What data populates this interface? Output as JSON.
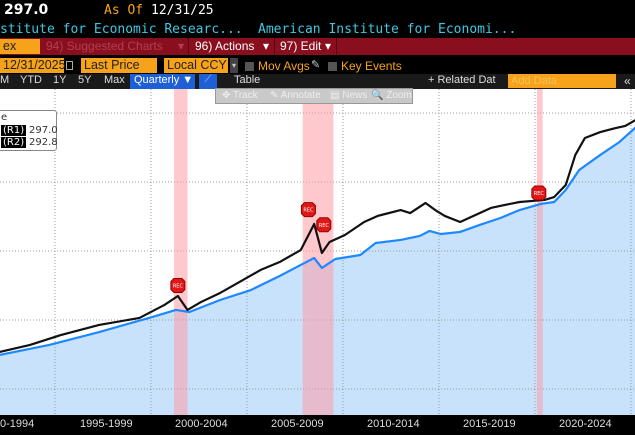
{
  "header": {
    "price": "297.0",
    "as_of_label": "As Of",
    "as_of_date": "12/31/25"
  },
  "subtitle": {
    "left": "stitute for Economic Researc...",
    "right": "American Institute for Economi..."
  },
  "menu": {
    "index_field": "ex",
    "suggested": "94) Suggested Charts",
    "actions": "96) Actions",
    "edit": "97) Edit",
    "caret": "▾"
  },
  "controls": {
    "date": "12/31/2025",
    "price_type": "Last Price",
    "currency": "Local CCY",
    "mov_avgs": "Mov Avgs",
    "key_events": "Key Events"
  },
  "ranges": {
    "items": [
      "M",
      "YTD",
      "1Y",
      "5Y",
      "Max"
    ],
    "period": "Quarterly ▼",
    "table": "Table",
    "related": "+ Related Dat",
    "add_data_placeholder": "Add Data",
    "collapse": "«"
  },
  "tools": {
    "track": "✥ Track",
    "annotate": "✎ Annotate",
    "news": "▤ News",
    "zoom": "🔍 Zoom"
  },
  "legend": {
    "title": "e",
    "r1_tag": "(R1)",
    "r1_value": "297.0",
    "r2_tag": "(R2)",
    "r2_value": "292.8"
  },
  "colors": {
    "black_line": "#111111",
    "blue_line": "#1e88ff",
    "fill": "#c8e2fc",
    "recession": "#ff9aa2",
    "orange": "#f7a21b",
    "menu_red": "#8a0f1e"
  },
  "chart_data": {
    "type": "line",
    "title": "",
    "xlabel": "",
    "ylabel": "",
    "x_tick_labels": [
      "0-1994",
      "1995-1999",
      "2000-2004",
      "2005-2009",
      "2010-2014",
      "2015-2019",
      "2020-2024"
    ],
    "xlim": [
      1992.1,
      2025.5
    ],
    "ylim": [
      80,
      320
    ],
    "grid": true,
    "recessions": [
      [
        2001.2,
        2001.9
      ],
      [
        2007.9,
        2009.5
      ],
      [
        2020.1,
        2020.4
      ]
    ],
    "rec_markers": [
      {
        "label": "REC",
        "x": 2001.4,
        "y": 175
      },
      {
        "label": "REC",
        "x": 2008.2,
        "y": 230
      },
      {
        "label": "REC",
        "x": 2009.0,
        "y": 219
      },
      {
        "label": "REC",
        "x": 2020.2,
        "y": 242
      }
    ],
    "series": [
      {
        "name": "R1",
        "color": "#111111",
        "points": [
          [
            1992.1,
            126.8
          ],
          [
            1993.7,
            131.9
          ],
          [
            1995.3,
            139.1
          ],
          [
            1997.3,
            146.4
          ],
          [
            1999.4,
            151.5
          ],
          [
            2000.7,
            160.9
          ],
          [
            2001.4,
            167.4
          ],
          [
            2001.9,
            157.3
          ],
          [
            2002.6,
            163.0
          ],
          [
            2003.6,
            169.6
          ],
          [
            2004.6,
            177.5
          ],
          [
            2005.7,
            186.2
          ],
          [
            2006.7,
            192.0
          ],
          [
            2007.8,
            200.7
          ],
          [
            2008.5,
            219.6
          ],
          [
            2008.9,
            198.6
          ],
          [
            2009.3,
            206.5
          ],
          [
            2010.1,
            211.6
          ],
          [
            2011.1,
            221.0
          ],
          [
            2011.8,
            225.4
          ],
          [
            2013.0,
            229.7
          ],
          [
            2013.5,
            227.5
          ],
          [
            2014.3,
            234.8
          ],
          [
            2014.8,
            229.7
          ],
          [
            2015.3,
            225.4
          ],
          [
            2016.1,
            221.0
          ],
          [
            2016.9,
            226.1
          ],
          [
            2017.7,
            231.2
          ],
          [
            2018.4,
            233.3
          ],
          [
            2019.2,
            235.5
          ],
          [
            2020.5,
            237.0
          ],
          [
            2021.0,
            239.1
          ],
          [
            2021.6,
            247.8
          ],
          [
            2022.1,
            269.6
          ],
          [
            2022.6,
            281.9
          ],
          [
            2023.4,
            286.2
          ],
          [
            2024.2,
            289.1
          ],
          [
            2024.7,
            290.6
          ],
          [
            2025.5,
            297.0
          ]
        ]
      },
      {
        "name": "R2",
        "color": "#1e88ff",
        "points": [
          [
            1992.1,
            124.6
          ],
          [
            1994.7,
            131.9
          ],
          [
            1997.3,
            141.3
          ],
          [
            1999.9,
            151.5
          ],
          [
            2001.3,
            157.3
          ],
          [
            2002.0,
            155.8
          ],
          [
            2003.6,
            164.5
          ],
          [
            2005.2,
            171.7
          ],
          [
            2006.7,
            181.9
          ],
          [
            2007.8,
            189.9
          ],
          [
            2008.5,
            194.9
          ],
          [
            2008.9,
            187.7
          ],
          [
            2009.6,
            194.2
          ],
          [
            2010.9,
            197.1
          ],
          [
            2011.7,
            205.8
          ],
          [
            2013.0,
            208.0
          ],
          [
            2014.0,
            210.9
          ],
          [
            2014.5,
            214.5
          ],
          [
            2015.1,
            212.3
          ],
          [
            2016.1,
            213.8
          ],
          [
            2017.1,
            218.8
          ],
          [
            2018.2,
            223.9
          ],
          [
            2019.2,
            229.7
          ],
          [
            2020.3,
            234.1
          ],
          [
            2021.0,
            235.5
          ],
          [
            2021.6,
            244.2
          ],
          [
            2022.3,
            258.7
          ],
          [
            2023.4,
            269.6
          ],
          [
            2024.4,
            279.0
          ],
          [
            2025.5,
            292.8
          ]
        ]
      }
    ]
  }
}
